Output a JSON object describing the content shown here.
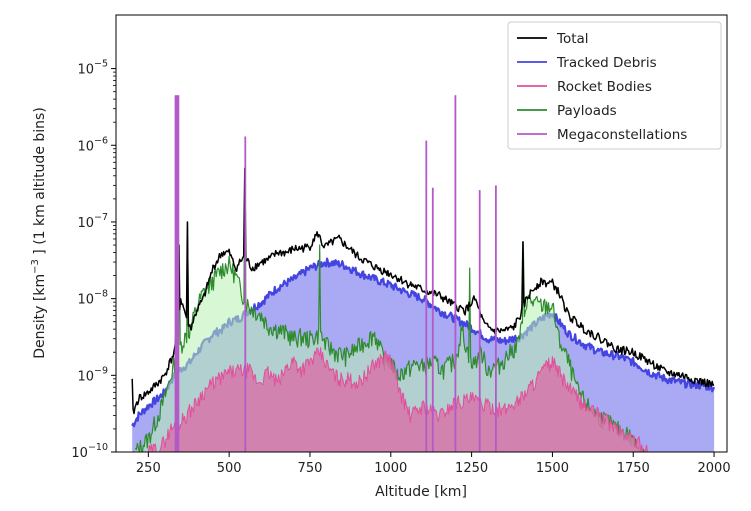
{
  "chart_data": {
    "type": "area",
    "xlabel": "Altitude [km]",
    "ylabel_prefix": "Density [km",
    "ylabel_exp": "−3",
    "ylabel_suffix": " ] (1 km altitude bins)",
    "xlim": [
      150,
      2040
    ],
    "ylim": [
      1e-10,
      5e-05
    ],
    "yscale": "log",
    "x_ticks": [
      250,
      500,
      750,
      1000,
      1250,
      1500,
      1750,
      2000
    ],
    "x_tick_labels": [
      "250",
      "500",
      "750",
      "1000",
      "1250",
      "1500",
      "1750",
      "2000"
    ],
    "y_ticks": [
      1e-10,
      1e-09,
      1e-08,
      1e-07,
      1e-06,
      1e-05
    ],
    "y_tick_labels": [
      {
        "base": "10",
        "exp": "−10"
      },
      {
        "base": "10",
        "exp": "−9"
      },
      {
        "base": "10",
        "exp": "−8"
      },
      {
        "base": "10",
        "exp": "−7"
      },
      {
        "base": "10",
        "exp": "−6"
      },
      {
        "base": "10",
        "exp": "−5"
      }
    ],
    "grid": false,
    "legend_position": "top-right",
    "series": [
      {
        "name": "Total",
        "color": "#000000",
        "style": "line",
        "x": [
          200,
          220,
          250,
          280,
          300,
          330,
          350,
          380,
          400,
          420,
          450,
          470,
          480,
          500,
          520,
          545,
          555,
          570,
          600,
          620,
          650,
          680,
          700,
          720,
          750,
          760,
          775,
          790,
          800,
          820,
          840,
          860,
          900,
          950,
          1000,
          1050,
          1100,
          1150,
          1200,
          1230,
          1260,
          1290,
          1320,
          1350,
          1380,
          1400,
          1420,
          1450,
          1470,
          1480,
          1500,
          1520,
          1550,
          1600,
          1650,
          1700,
          1750,
          1800,
          1850,
          1900,
          1950,
          2000
        ],
        "y": [
          3e-10,
          5e-10,
          6e-10,
          8e-10,
          1e-09,
          2e-09,
          1e-08,
          4e-09,
          7e-09,
          1e-08,
          2.5e-08,
          3.5e-08,
          4e-08,
          4e-08,
          2.5e-08,
          3.5e-08,
          3.2e-08,
          2.5e-08,
          3e-08,
          3.2e-08,
          4e-08,
          4e-08,
          4.5e-08,
          4.5e-08,
          4.8e-08,
          6e-08,
          7e-08,
          5e-08,
          4.8e-08,
          5.5e-08,
          6e-08,
          5e-08,
          3.5e-08,
          2.6e-08,
          2.1e-08,
          1.6e-08,
          1.3e-08,
          1.1e-08,
          8e-09,
          7e-09,
          1e-08,
          4.5e-09,
          3.8e-09,
          3.8e-09,
          4.2e-09,
          6e-09,
          1e-08,
          1.5e-08,
          1.7e-08,
          1.6e-08,
          1.6e-08,
          1.2e-08,
          6e-09,
          4e-09,
          3e-09,
          2.2e-09,
          2e-09,
          1.5e-09,
          1.1e-09,
          1e-09,
          8.5e-10,
          7.5e-10
        ]
      },
      {
        "name": "Tracked Debris",
        "color": "#4444e0",
        "fill": "#9a9af2",
        "style": "filled",
        "x": [
          200,
          220,
          250,
          280,
          300,
          330,
          350,
          380,
          400,
          430,
          450,
          480,
          500,
          530,
          560,
          600,
          650,
          700,
          750,
          780,
          800,
          850,
          900,
          950,
          1000,
          1050,
          1100,
          1150,
          1200,
          1250,
          1300,
          1350,
          1400,
          1450,
          1480,
          1500,
          1520,
          1550,
          1600,
          1650,
          1700,
          1750,
          1800,
          1850,
          1900,
          1950,
          2000
        ],
        "y": [
          2.2e-10,
          3e-10,
          4e-10,
          5e-10,
          6e-10,
          1e-09,
          1.2e-09,
          1.5e-09,
          2e-09,
          2.8e-09,
          3.5e-09,
          4e-09,
          5e-09,
          5.5e-09,
          7e-09,
          9e-09,
          1.4e-08,
          1.8e-08,
          2.5e-08,
          2.8e-08,
          3e-08,
          2.8e-08,
          2.2e-08,
          1.8e-08,
          1.5e-08,
          1.2e-08,
          1e-08,
          7e-09,
          5.5e-09,
          4.2e-09,
          3e-09,
          2.8e-09,
          3.2e-09,
          4.8e-09,
          6e-09,
          6.5e-09,
          5e-09,
          3.5e-09,
          2.5e-09,
          2e-09,
          1.8e-09,
          1.5e-09,
          1.1e-09,
          9e-10,
          8e-10,
          7.5e-10,
          7e-10
        ]
      },
      {
        "name": "Rocket Bodies",
        "color": "#e0509a",
        "fill": "#d874a8",
        "style": "filled",
        "x": [
          250,
          290,
          320,
          350,
          390,
          420,
          450,
          500,
          560,
          590,
          620,
          650,
          680,
          700,
          720,
          750,
          780,
          810,
          840,
          870,
          900,
          950,
          980,
          1000,
          1030,
          1060,
          1100,
          1150,
          1200,
          1250,
          1300,
          1350,
          1400,
          1430,
          1450,
          1480,
          1500,
          1520,
          1550,
          1600,
          1650,
          1700,
          1750,
          1800
        ],
        "y": [
          1e-10,
          1.2e-10,
          2e-10,
          2.5e-10,
          4e-10,
          6e-10,
          8e-10,
          1.1e-09,
          1.2e-09,
          8e-10,
          1.1e-09,
          8e-10,
          1.3e-09,
          1.6e-09,
          1.2e-09,
          1.5e-09,
          2e-09,
          1.2e-09,
          9e-10,
          9e-10,
          8e-10,
          1.4e-09,
          1.8e-09,
          1.6e-09,
          6e-10,
          3e-10,
          4e-10,
          3e-10,
          4.5e-10,
          5e-10,
          4e-10,
          3.5e-10,
          5e-10,
          7e-10,
          9e-10,
          1.3e-09,
          1.5e-09,
          1.1e-09,
          7e-10,
          4e-10,
          3e-10,
          2e-10,
          1.5e-10,
          1e-10
        ]
      },
      {
        "name": "Payloads",
        "color": "#2e8b2e",
        "fill": "#b8f0b0",
        "style": "filled",
        "x": [
          210,
          250,
          280,
          300,
          320,
          340,
          360,
          380,
          400,
          420,
          440,
          460,
          480,
          500,
          520,
          540,
          560,
          580,
          600,
          620,
          650,
          680,
          700,
          720,
          750,
          780,
          800,
          830,
          860,
          890,
          920,
          950,
          980,
          1000,
          1020,
          1050,
          1080,
          1100,
          1130,
          1160,
          1200,
          1220,
          1250,
          1280,
          1300,
          1330,
          1360,
          1390,
          1410,
          1420,
          1440,
          1470,
          1500,
          1520,
          1550,
          1580,
          1610,
          1640,
          1670,
          1700,
          1730,
          1760,
          1790
        ],
        "y": [
          1e-10,
          1.5e-10,
          3e-10,
          5e-10,
          1e-09,
          2e-09,
          3e-09,
          4e-09,
          8e-09,
          1.2e-08,
          1.5e-08,
          2e-08,
          2.5e-08,
          2.8e-08,
          2e-08,
          1.2e-08,
          8e-09,
          7e-09,
          6e-09,
          4.5e-09,
          4e-09,
          3.5e-09,
          3e-09,
          3.2e-09,
          3e-09,
          3.5e-09,
          2.5e-09,
          2e-09,
          1.8e-09,
          2.2e-09,
          2.8e-09,
          3.5e-09,
          1.6e-09,
          1.5e-09,
          1e-09,
          1.2e-09,
          1.4e-09,
          1.3e-09,
          1.5e-09,
          1.2e-09,
          1.6e-09,
          4e-09,
          1.3e-09,
          2e-09,
          1.2e-09,
          1.3e-09,
          1.8e-09,
          2.5e-09,
          5e-09,
          1e-08,
          9e-09,
          8e-09,
          8e-09,
          3e-09,
          1.5e-09,
          6e-10,
          4e-10,
          3e-10,
          2.5e-10,
          2e-10,
          1.8e-10,
          1.2e-10,
          1e-10
        ]
      },
      {
        "name": "Megaconstellations",
        "color": "#b45ac8",
        "style": "spikes",
        "x": [
          335,
          342,
          550,
          1110,
          1130,
          1200,
          1275,
          1325
        ],
        "y": [
          4.5e-06,
          4.5e-06,
          1.3e-06,
          1.15e-06,
          2.8e-07,
          4.5e-06,
          2.6e-07,
          3e-07
        ]
      }
    ],
    "extra_spikes": {
      "total": {
        "x": [
          200,
          345,
          372,
          548,
          1410
        ],
        "y": [
          9e-10,
          5e-08,
          1e-07,
          5e-07,
          5.5e-08
        ]
      },
      "payloads": {
        "x": [
          345,
          372,
          548,
          780,
          1245,
          1410
        ],
        "y": [
          5e-08,
          1e-07,
          5e-07,
          5e-08,
          2.5e-08,
          5.5e-08
        ]
      }
    }
  }
}
